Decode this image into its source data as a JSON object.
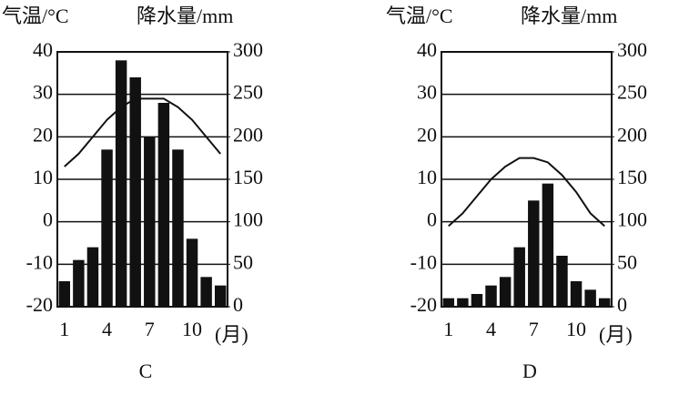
{
  "chart_data": [
    {
      "type": "combo",
      "title": "C",
      "ylabel": "气温/°C",
      "y2label": "降水量/mm",
      "xlabel": "(月)",
      "categories": [
        1,
        null,
        null,
        4,
        null,
        null,
        7,
        null,
        null,
        10,
        null,
        null
      ],
      "ylim": [
        -20,
        40
      ],
      "yticks": [
        -20,
        -10,
        0,
        10,
        20,
        30,
        40
      ],
      "y2lim": [
        0,
        300
      ],
      "y2ticks": [
        0,
        50,
        100,
        150,
        200,
        250,
        300
      ],
      "grid": true,
      "series": [
        {
          "kind": "bar",
          "axis": "y2",
          "color": "#111111",
          "values": [
            30,
            55,
            70,
            185,
            290,
            270,
            200,
            240,
            185,
            80,
            35,
            25
          ]
        },
        {
          "kind": "line",
          "color": "#111111",
          "values": [
            13,
            16,
            20,
            24,
            27,
            29,
            29,
            29,
            27,
            24,
            20,
            16
          ]
        }
      ]
    },
    {
      "type": "combo",
      "title": "D",
      "ylabel": "气温/°C",
      "y2label": "降水量/mm",
      "xlabel": "(月)",
      "categories": [
        1,
        null,
        null,
        4,
        null,
        null,
        7,
        null,
        null,
        10,
        null,
        null
      ],
      "ylim": [
        -20,
        40
      ],
      "yticks": [
        -20,
        -10,
        0,
        10,
        20,
        30,
        40
      ],
      "y2lim": [
        0,
        300
      ],
      "y2ticks": [
        0,
        50,
        100,
        150,
        200,
        250,
        300
      ],
      "grid": true,
      "series": [
        {
          "kind": "bar",
          "axis": "y2",
          "color": "#111111",
          "values": [
            10,
            10,
            15,
            25,
            35,
            70,
            125,
            145,
            60,
            30,
            20,
            10
          ]
        },
        {
          "kind": "line",
          "color": "#111111",
          "values": [
            -1,
            2,
            6,
            10,
            13,
            15,
            15,
            14,
            11,
            7,
            2,
            -1
          ]
        }
      ]
    }
  ]
}
